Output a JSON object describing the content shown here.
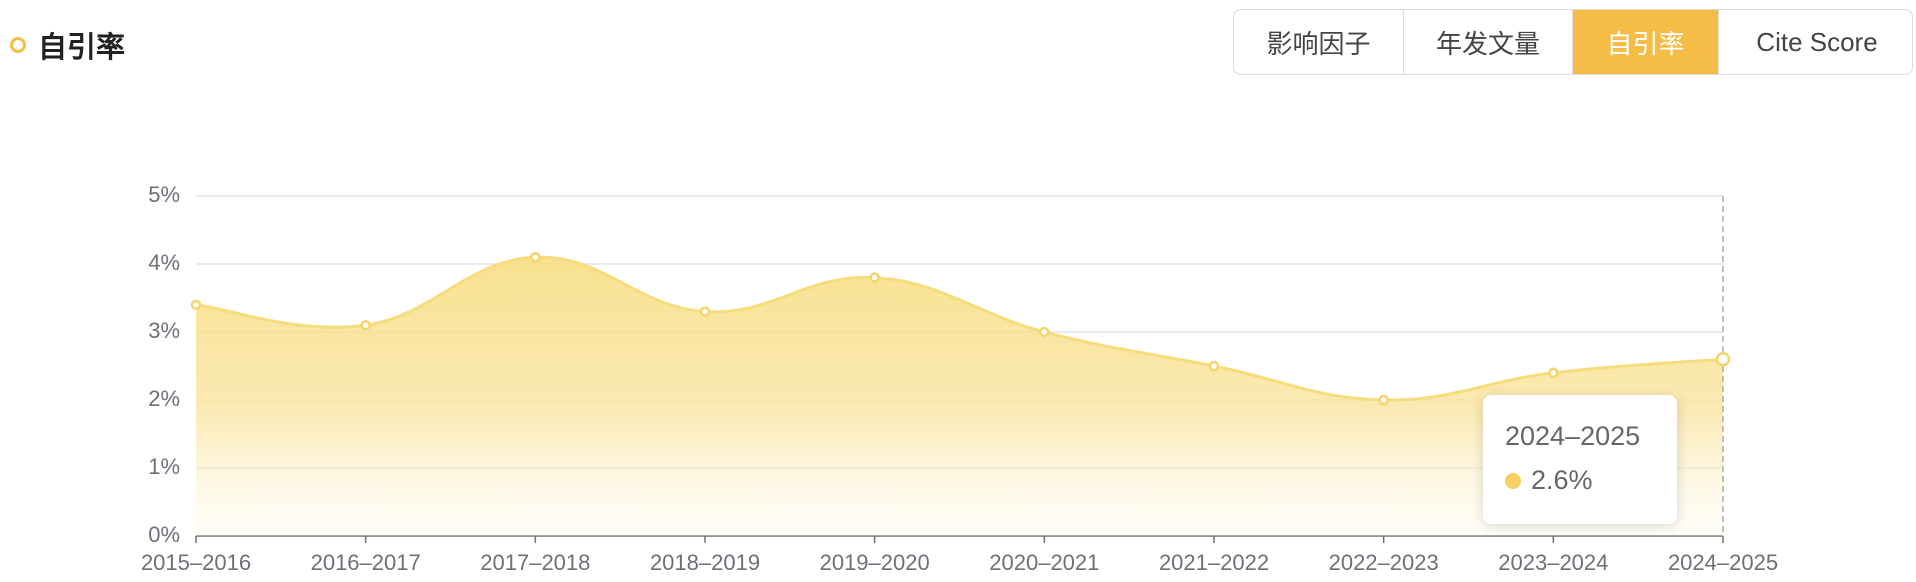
{
  "header": {
    "title": "自引率",
    "tabs": [
      "影响因子",
      "年发文量",
      "自引率",
      "Cite Score"
    ]
  },
  "chart_data": {
    "type": "line",
    "smooth": true,
    "area": true,
    "color": "#f7dc7c",
    "categories": [
      "2015–2016",
      "2016–2017",
      "2017–2018",
      "2018–2019",
      "2019–2020",
      "2020–2021",
      "2021–2022",
      "2022–2023",
      "2023–2024",
      "2024–2025"
    ],
    "values": [
      3.4,
      3.1,
      4.1,
      3.3,
      3.8,
      3.0,
      2.5,
      2.0,
      2.4,
      2.6
    ],
    "ylim": [
      0,
      5
    ],
    "yticks": [
      {
        "value": 0,
        "label": "0%"
      },
      {
        "value": 1,
        "label": "1%"
      },
      {
        "value": 2,
        "label": "2%"
      },
      {
        "value": 3,
        "label": "3%"
      },
      {
        "value": 4,
        "label": "4%"
      },
      {
        "value": 5,
        "label": "5%"
      }
    ],
    "grid": true,
    "tooltip": {
      "category": "2024–2025",
      "value_label": "2.6%"
    }
  }
}
